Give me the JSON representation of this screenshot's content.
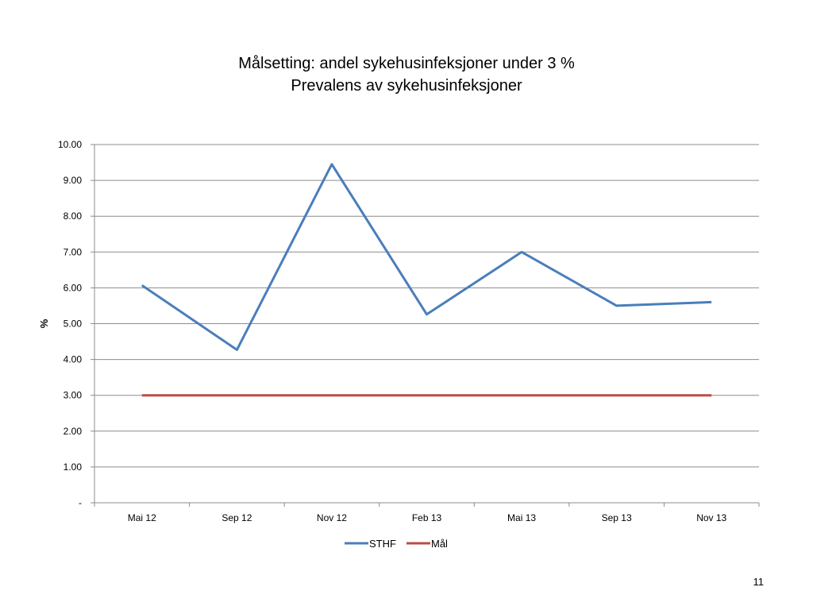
{
  "chart_data": {
    "type": "line",
    "title": "Målsetting: andel sykehusinfeksjoner under 3 %",
    "subtitle": "Prevalens av sykehusinfeksjoner",
    "xlabel": "",
    "ylabel": "%",
    "categories": [
      "Mai 12",
      "Sep 12",
      "Nov 12",
      "Feb 13",
      "Mai 13",
      "Sep 13",
      "Nov 13"
    ],
    "ylim": [
      0,
      10
    ],
    "yticks": [
      0,
      1,
      2,
      3,
      4,
      5,
      6,
      7,
      8,
      9,
      10
    ],
    "ytick_labels": [
      "-",
      "1.00",
      "2.00",
      "3.00",
      "4.00",
      "5.00",
      "6.00",
      "7.00",
      "8.00",
      "9.00",
      "10.00"
    ],
    "grid": true,
    "legend_position": "bottom",
    "series": [
      {
        "name": "STHF",
        "color": "#4a7ebb",
        "values": [
          6.07,
          4.27,
          9.45,
          5.26,
          7.0,
          5.5,
          5.6
        ]
      },
      {
        "name": "Mål",
        "color": "#be4b48",
        "values": [
          3.0,
          3.0,
          3.0,
          3.0,
          3.0,
          3.0,
          3.0
        ]
      }
    ]
  },
  "page_number": "11"
}
